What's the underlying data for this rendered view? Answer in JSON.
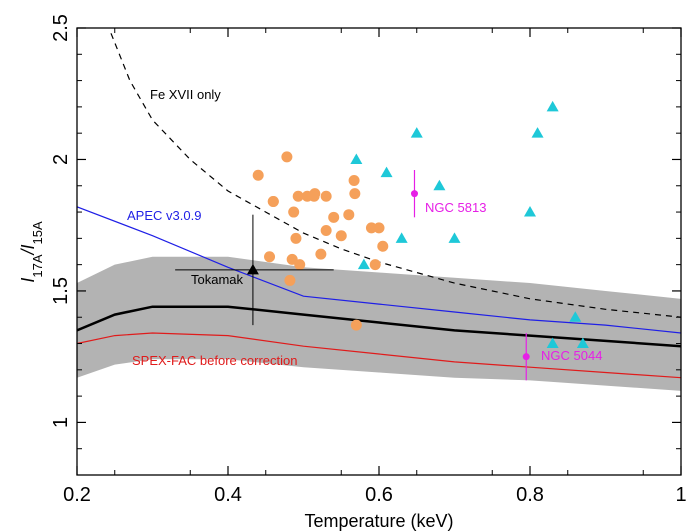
{
  "chart_data": {
    "type": "scatter",
    "xlabel": "Temperature (keV)",
    "ylabel": {
      "main": "I",
      "num_sub": "17A",
      "sep": "/I",
      "den_sub": "15A"
    },
    "xlim": [
      0.2,
      1.0
    ],
    "ylim": [
      0.8,
      2.5
    ],
    "x_ticks": [
      "0.2",
      "0.4",
      "0.6",
      "0.8",
      "1"
    ],
    "x_tick_values": [
      0.2,
      0.4,
      0.6,
      0.8,
      1.0
    ],
    "y_ticks": [
      "1",
      "1.5",
      "2",
      "2.5"
    ],
    "y_tick_values": [
      1.0,
      1.5,
      2.0,
      2.5
    ],
    "grid": false,
    "colors": {
      "band": "#b3b3b3",
      "black": "#000000",
      "apec": "#1f1fe6",
      "spex_before": "#e01b1b",
      "orange": "#f5a05a",
      "cyan": "#1ec8d8",
      "magenta": "#e61fe6"
    },
    "band": {
      "x": [
        0.2,
        0.25,
        0.3,
        0.4,
        0.5,
        0.6,
        0.7,
        0.8,
        0.9,
        1.0
      ],
      "upper": [
        1.53,
        1.6,
        1.63,
        1.63,
        1.59,
        1.57,
        1.55,
        1.53,
        1.5,
        1.47
      ],
      "lower": [
        1.17,
        1.22,
        1.24,
        1.24,
        1.21,
        1.19,
        1.17,
        1.16,
        1.14,
        1.12
      ]
    },
    "lines": [
      {
        "id": "spex-fac-corrected",
        "color": "#000000",
        "width": 2.5,
        "dash": "",
        "x": [
          0.2,
          0.25,
          0.3,
          0.4,
          0.5,
          0.6,
          0.7,
          0.8,
          0.9,
          1.0
        ],
        "y": [
          1.35,
          1.41,
          1.44,
          1.44,
          1.41,
          1.38,
          1.35,
          1.33,
          1.31,
          1.29
        ]
      },
      {
        "id": "spex-fac-before",
        "color": "#e01b1b",
        "width": 1.2,
        "dash": "",
        "x": [
          0.2,
          0.25,
          0.3,
          0.4,
          0.5,
          0.6,
          0.7,
          0.8,
          0.9,
          1.0
        ],
        "y": [
          1.3,
          1.33,
          1.34,
          1.33,
          1.29,
          1.26,
          1.23,
          1.21,
          1.19,
          1.17
        ]
      },
      {
        "id": "apec",
        "color": "#1f1fe6",
        "width": 1.2,
        "dash": "",
        "x": [
          0.2,
          0.3,
          0.4,
          0.5,
          0.6,
          0.7,
          0.8,
          0.9,
          1.0
        ],
        "y": [
          1.82,
          1.71,
          1.59,
          1.48,
          1.45,
          1.42,
          1.39,
          1.37,
          1.34
        ]
      },
      {
        "id": "fe-xvii-only",
        "color": "#000000",
        "width": 1.2,
        "dash": "6,5",
        "x": [
          0.245,
          0.27,
          0.3,
          0.35,
          0.4,
          0.45,
          0.5,
          0.55,
          0.6,
          0.7,
          0.8,
          0.9,
          1.0
        ],
        "y": [
          2.48,
          2.3,
          2.15,
          2.0,
          1.88,
          1.8,
          1.72,
          1.66,
          1.61,
          1.53,
          1.47,
          1.43,
          1.4
        ]
      }
    ],
    "orange_points": {
      "x": [
        0.44,
        0.455,
        0.46,
        0.478,
        0.482,
        0.487,
        0.49,
        0.493,
        0.495,
        0.505,
        0.514,
        0.515,
        0.523,
        0.53,
        0.53,
        0.54,
        0.55,
        0.56,
        0.567,
        0.568,
        0.57,
        0.59,
        0.595,
        0.6,
        0.605,
        0.485,
        0.46
      ],
      "y": [
        1.94,
        1.63,
        1.84,
        2.01,
        1.54,
        1.8,
        1.7,
        1.86,
        1.6,
        1.86,
        1.86,
        1.87,
        1.64,
        1.86,
        1.73,
        1.78,
        1.71,
        1.79,
        1.92,
        1.87,
        1.37,
        1.74,
        1.6,
        1.74,
        1.67,
        1.62,
        1.84
      ]
    },
    "cyan_points": {
      "x": [
        0.57,
        0.58,
        0.61,
        0.63,
        0.65,
        0.68,
        0.7,
        0.8,
        0.81,
        0.83,
        0.83,
        0.86,
        0.87
      ],
      "y": [
        2.0,
        1.6,
        1.95,
        1.7,
        2.1,
        1.9,
        1.7,
        1.8,
        2.1,
        2.2,
        1.3,
        1.4,
        1.3
      ]
    },
    "tokamak": {
      "x": 0.433,
      "y": 1.58,
      "xerr": [
        0.33,
        0.54
      ],
      "yerr": [
        1.37,
        1.79
      ],
      "label": "Tokamak"
    },
    "ngc5813": {
      "x": 0.647,
      "y": 1.87,
      "yerr": [
        1.78,
        1.96
      ],
      "label": "NGC 5813"
    },
    "ngc5044": {
      "x": 0.795,
      "y": 1.25,
      "yerr": [
        1.16,
        1.34
      ],
      "label": "NGC 5044"
    },
    "annotations": {
      "fe_xvii": "Fe XVII only",
      "apec": "APEC v3.0.9",
      "spex_before": "SPEX-FAC before correction"
    }
  }
}
